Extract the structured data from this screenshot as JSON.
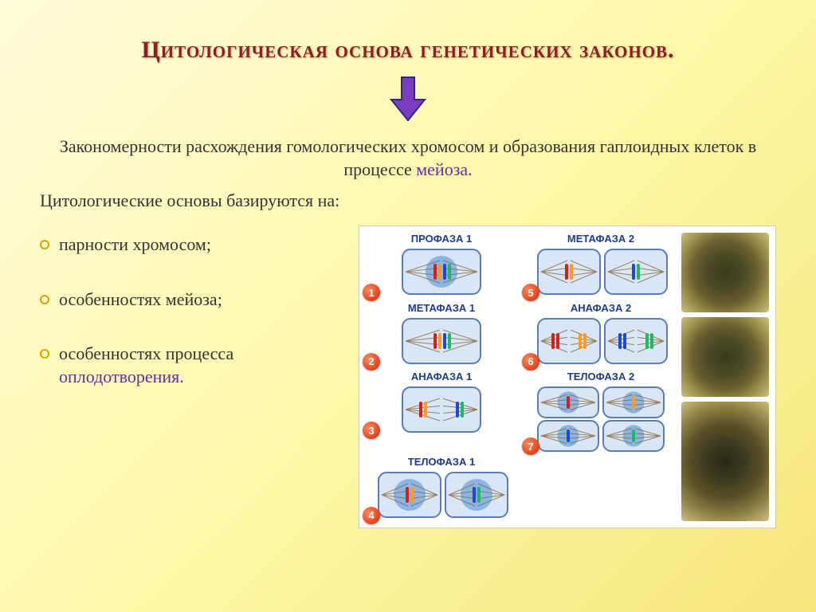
{
  "title": "Цитологическая основа генетических законов.",
  "arrow": {
    "color": "#6a2ca0",
    "outline": "#1a237e",
    "width": 50,
    "height": 60
  },
  "subtitle_plain": "Закономерности расхождения гомологических хромосом и образования гаплоидных клеток в процессе ",
  "subtitle_highlight": "мейоза.",
  "intro": "Цитологические основы базируются на:",
  "bullets": [
    {
      "text": "парности хромосом;",
      "highlight": ""
    },
    {
      "text": "особенностях мейоза;",
      "highlight": ""
    },
    {
      "text": "особенностях процесса ",
      "highlight": "оплодотворения."
    }
  ],
  "bullet_marker_color": "#d9a400",
  "diagram": {
    "background": "#ffffff",
    "label_color": "#1a3d8f",
    "num_bg": "#e63000",
    "phases": [
      {
        "num": "1",
        "label": "ПРОФАЗА 1",
        "col": 1,
        "cells": 1,
        "nucleus": true
      },
      {
        "num": "5",
        "label": "МЕТАФАЗА 2",
        "col": 2,
        "cells": 2,
        "nucleus": false,
        "align": "equator"
      },
      {
        "num": "2",
        "label": "МЕТАФАЗА 1",
        "col": 1,
        "cells": 1,
        "nucleus": false,
        "align": "equator"
      },
      {
        "num": "6",
        "label": "АНАФАЗА 2",
        "col": 2,
        "cells": 2,
        "nucleus": false,
        "align": "poles"
      },
      {
        "num": "3",
        "label": "АНАФАЗА 1",
        "col": 1,
        "cells": 1,
        "nucleus": false,
        "align": "poles"
      },
      {
        "num": "7",
        "label": "ТЕЛОФАЗА 2",
        "col": 2,
        "cells": 4,
        "nucleus": true
      },
      {
        "num": "4",
        "label": "ТЕЛОФАЗА 1",
        "col": 1,
        "cells": 2,
        "nucleus": true
      }
    ],
    "chromosome_colors": {
      "pair1": [
        "#d41f1f",
        "#ff9a1f"
      ],
      "pair2": [
        "#1f48d4",
        "#1fb862"
      ]
    },
    "cell_fill": "#d8e6f7",
    "cell_stroke": "#5a7db8",
    "spindle_color": "#8a6a3a",
    "nucleus_fill": "#6aa0e0"
  },
  "microscopy": {
    "count": 3,
    "tint": "#6b6030"
  }
}
